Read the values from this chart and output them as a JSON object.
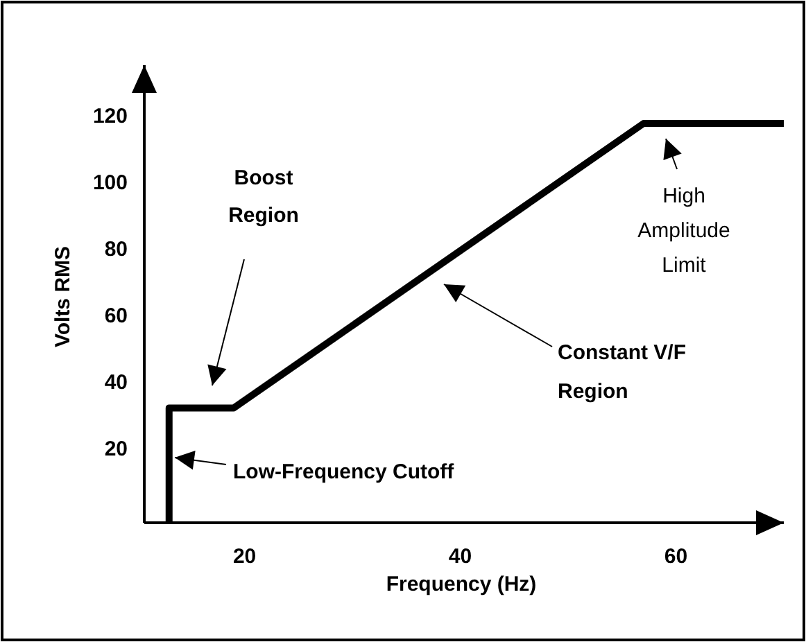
{
  "chart_data": {
    "type": "line",
    "xlabel": "Frequency (Hz)",
    "ylabel": "Volts RMS",
    "xlim": [
      10.7,
      70
    ],
    "xticks": [
      20,
      40,
      60
    ],
    "ylim": [
      -2.5,
      135
    ],
    "yticks": [
      20,
      40,
      60,
      80,
      100,
      120
    ],
    "x": [
      13,
      13,
      19,
      57,
      70
    ],
    "series": [
      {
        "color": "#000000",
        "values": [
          -2.5,
          32,
          32,
          117.5,
          117.5
        ]
      }
    ],
    "grid": false,
    "marker": "none",
    "line_style": "solid",
    "annotations": [
      "Boost Region",
      "Low-Frequency Cutoff",
      "Constant V/F Region",
      "High Amplitude Limit"
    ]
  }
}
